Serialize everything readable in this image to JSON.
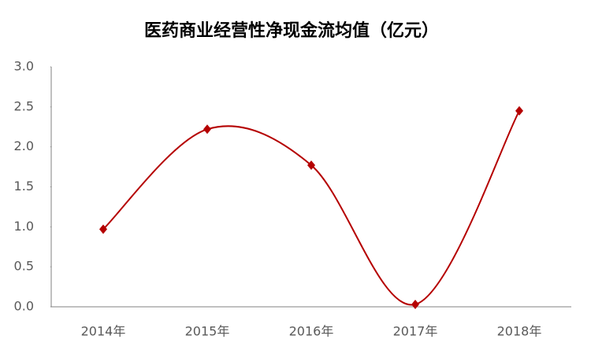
{
  "chart_data": {
    "type": "line",
    "title": "医药商业经营性净现金流均值（亿元）",
    "categories": [
      "2014年",
      "2015年",
      "2016年",
      "2017年",
      "2018年"
    ],
    "values": [
      0.97,
      2.22,
      1.77,
      0.03,
      2.45
    ],
    "color": "#b50000",
    "smooth": true,
    "ylim": [
      0,
      3
    ],
    "yticks": [
      {
        "value": 0,
        "label": "0.0"
      },
      0.5,
      {
        "value": 1,
        "label": "1.0"
      },
      1.5,
      {
        "value": 2,
        "label": "2.0"
      },
      2.5,
      {
        "value": 3,
        "label": "3.0"
      }
    ],
    "grid": false
  }
}
